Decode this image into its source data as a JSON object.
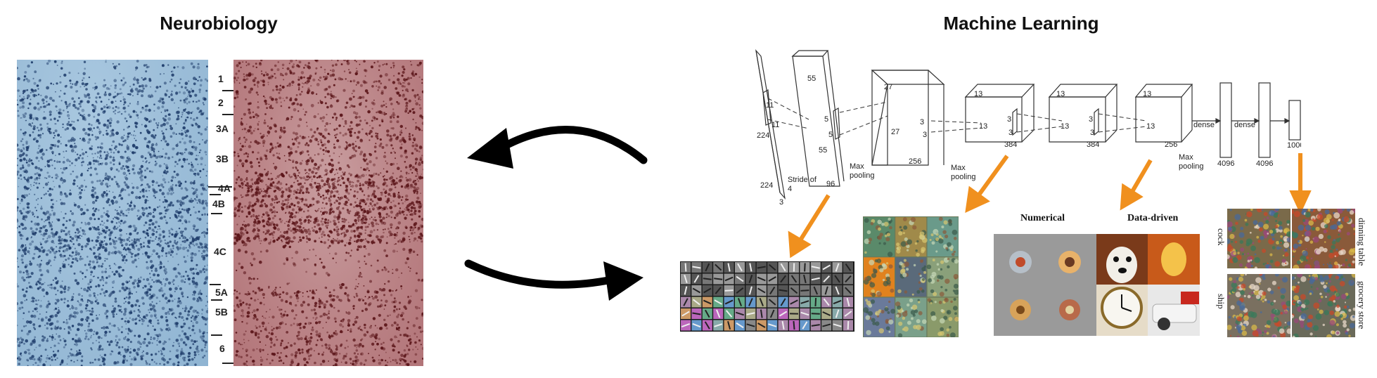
{
  "headings": {
    "left": "Neurobiology",
    "right": "Machine Learning"
  },
  "cortex_layers": [
    "1",
    "2",
    "3A",
    "3B",
    "4A",
    "4B",
    "4C",
    "5A",
    "5B",
    "6"
  ],
  "cnn": {
    "input": {
      "d1": "224",
      "d2": "224",
      "d3": "3",
      "k1": "11",
      "k2": "11",
      "stride": "Stride of 4"
    },
    "conv1": {
      "a": "55",
      "b": "55",
      "c": "96",
      "k1": "5",
      "k2": "5",
      "pool": "Max pooling"
    },
    "conv2": {
      "a": "27",
      "b": "27",
      "c": "256",
      "k1": "3",
      "k2": "3",
      "pool": "Max pooling"
    },
    "conv3": {
      "a": "13",
      "b": "13",
      "c": "384",
      "k1": "3",
      "k2": "3"
    },
    "conv4": {
      "a": "13",
      "b": "13",
      "c": "384",
      "k1": "3",
      "k2": "3"
    },
    "conv5": {
      "a": "13",
      "b": "13",
      "c": "256",
      "pool": "Max pooling"
    },
    "dense_label": "dense",
    "fc1": "4096",
    "fc2": "4096",
    "out": "1000"
  },
  "panels": {
    "numerical": "Numerical",
    "data_driven": "Data-driven",
    "classes": [
      "cock",
      "dinning table",
      "ship",
      "grocery store"
    ]
  },
  "colors": {
    "arrow": "#f0901e",
    "blue_stain": "#1f3d6b",
    "red_stain": "#5a1418"
  }
}
